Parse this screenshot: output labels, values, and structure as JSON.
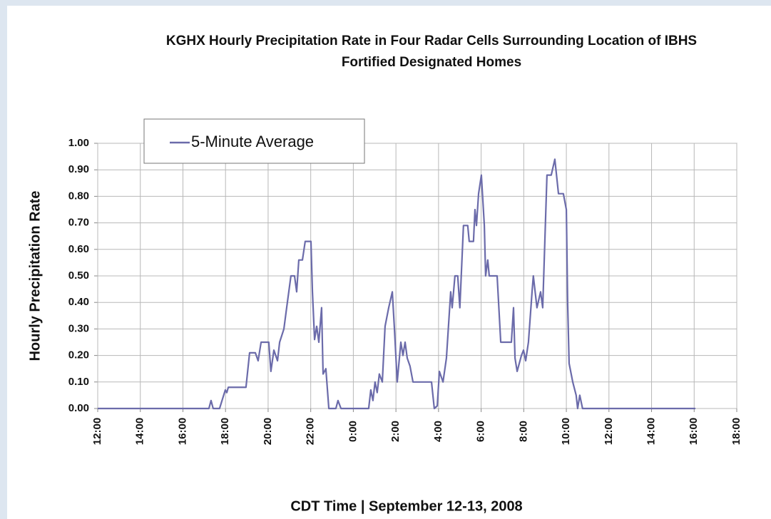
{
  "chart_data": {
    "type": "line",
    "title": [
      "KGHX Hourly Precipitation Rate in Four Radar Cells Surrounding Location of IBHS",
      "Fortified Designated Homes"
    ],
    "x_label": "CDT Time | September 12-13, 2008",
    "y_label": "Hourly Precipitation Rate",
    "xlim": [
      0,
      30
    ],
    "xticks": [
      {
        "value": 0,
        "label": "12:00"
      },
      {
        "value": 2,
        "label": "14:00"
      },
      {
        "value": 4,
        "label": "16:00"
      },
      {
        "value": 6,
        "label": "18:00"
      },
      {
        "value": 8,
        "label": "20:00"
      },
      {
        "value": 10,
        "label": "22:00"
      },
      {
        "value": 12,
        "label": "0:00"
      },
      {
        "value": 14,
        "label": "2:00"
      },
      {
        "value": 16,
        "label": "4:00"
      },
      {
        "value": 18,
        "label": "6:00"
      },
      {
        "value": 20,
        "label": "8:00"
      },
      {
        "value": 22,
        "label": "10:00"
      },
      {
        "value": 24,
        "label": "12:00"
      },
      {
        "value": 26,
        "label": "14:00"
      },
      {
        "value": 28,
        "label": "16:00"
      },
      {
        "value": 30,
        "label": "18:00"
      }
    ],
    "ylim": [
      0,
      1
    ],
    "yticks": [
      {
        "value": 0,
        "label": "0.00"
      },
      {
        "value": 0.1,
        "label": "0.10"
      },
      {
        "value": 0.2,
        "label": "0.20"
      },
      {
        "value": 0.3,
        "label": "0.30"
      },
      {
        "value": 0.4,
        "label": "0.40"
      },
      {
        "value": 0.5,
        "label": "0.50"
      },
      {
        "value": 0.6,
        "label": "0.60"
      },
      {
        "value": 0.7,
        "label": "0.70"
      },
      {
        "value": 0.8,
        "label": "0.80"
      },
      {
        "value": 0.9,
        "label": "0.90"
      },
      {
        "value": 1,
        "label": "1.00"
      }
    ],
    "grid": true,
    "legend": "top-left",
    "x": [
      0,
      5.22,
      5.32,
      5.42,
      5.72,
      5.99,
      6.06,
      6.13,
      6.96,
      7.13,
      7.4,
      7.53,
      7.67,
      8.03,
      8.13,
      8.27,
      8.44,
      8.54,
      8.74,
      8.87,
      9.07,
      9.24,
      9.34,
      9.44,
      9.61,
      9.74,
      10.01,
      10.08,
      10.18,
      10.28,
      10.38,
      10.51,
      10.58,
      10.71,
      10.85,
      11.18,
      11.28,
      11.42,
      12.72,
      12.82,
      12.92,
      13.02,
      13.12,
      13.22,
      13.36,
      13.49,
      13.66,
      13.83,
      13.93,
      14.06,
      14.23,
      14.33,
      14.43,
      14.53,
      14.66,
      14.8,
      15.5,
      15.67,
      15.8,
      15.94,
      16.04,
      16.21,
      16.37,
      16.57,
      16.64,
      16.77,
      16.9,
      17.0,
      17.17,
      17.37,
      17.44,
      17.64,
      17.71,
      17.78,
      17.88,
      18.01,
      18.15,
      18.21,
      18.31,
      18.38,
      18.75,
      18.92,
      19.42,
      19.52,
      19.59,
      19.69,
      19.89,
      19.99,
      20.09,
      20.22,
      20.39,
      20.45,
      20.62,
      20.79,
      20.89,
      20.99,
      21.09,
      21.29,
      21.46,
      21.63,
      21.86,
      22.0,
      22.06,
      22.13,
      22.3,
      22.46,
      22.53,
      22.63,
      22.76,
      28.06
    ],
    "series": [
      {
        "name": "5-Minute Average",
        "color": "#6b6baa",
        "values": [
          0,
          0,
          0.03,
          0,
          0,
          0.07,
          0.06,
          0.08,
          0.08,
          0.21,
          0.21,
          0.18,
          0.25,
          0.25,
          0.14,
          0.22,
          0.18,
          0.25,
          0.3,
          0.38,
          0.5,
          0.5,
          0.44,
          0.56,
          0.56,
          0.63,
          0.63,
          0.44,
          0.26,
          0.31,
          0.25,
          0.38,
          0.13,
          0.15,
          0,
          0,
          0.03,
          0,
          0,
          0.07,
          0.03,
          0.1,
          0.06,
          0.13,
          0.1,
          0.31,
          0.38,
          0.44,
          0.3,
          0.1,
          0.25,
          0.2,
          0.25,
          0.19,
          0.16,
          0.1,
          0.1,
          0.1,
          0,
          0.01,
          0.14,
          0.1,
          0.19,
          0.44,
          0.38,
          0.5,
          0.5,
          0.38,
          0.69,
          0.69,
          0.63,
          0.63,
          0.75,
          0.69,
          0.81,
          0.88,
          0.69,
          0.5,
          0.56,
          0.5,
          0.5,
          0.25,
          0.25,
          0.38,
          0.19,
          0.14,
          0.2,
          0.22,
          0.18,
          0.25,
          0.44,
          0.5,
          0.38,
          0.44,
          0.38,
          0.63,
          0.88,
          0.88,
          0.94,
          0.81,
          0.81,
          0.75,
          0.4,
          0.17,
          0.1,
          0.05,
          0,
          0.05,
          0,
          0
        ]
      }
    ]
  }
}
